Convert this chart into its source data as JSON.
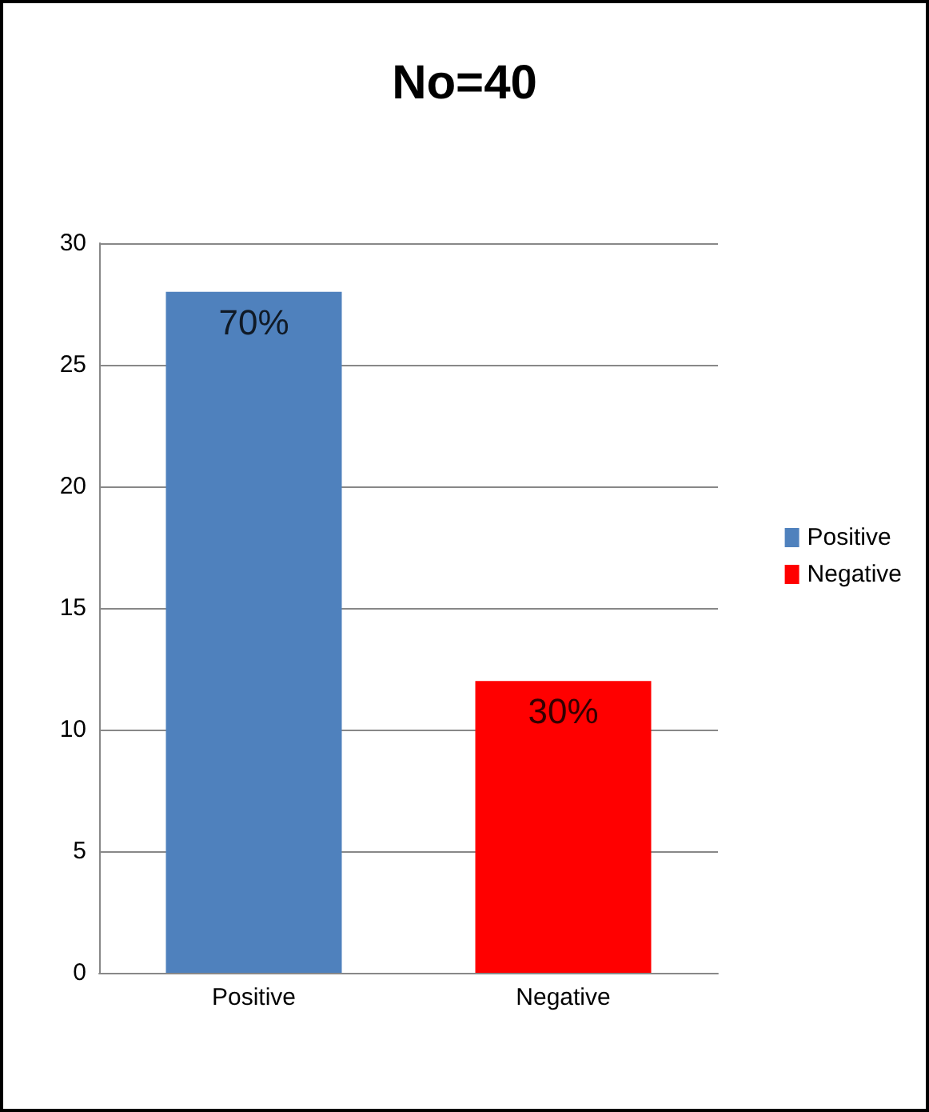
{
  "chart_data": {
    "type": "bar",
    "title": "No=40",
    "categories": [
      "Positive",
      "Negative"
    ],
    "series": [
      {
        "name": "Positive",
        "color": "#4f81bd",
        "values": [
          28,
          null
        ]
      },
      {
        "name": "Negative",
        "color": "#ff0000",
        "values": [
          null,
          12
        ]
      }
    ],
    "annotations": [
      {
        "text": "70%",
        "x": "Positive",
        "y": 28
      },
      {
        "text": "30%",
        "x": "Negative",
        "y": 12
      }
    ],
    "ylim": [
      0,
      30
    ],
    "yticks": [
      0,
      5,
      10,
      15,
      20,
      25,
      30
    ],
    "grid": "y",
    "legend": "right"
  }
}
